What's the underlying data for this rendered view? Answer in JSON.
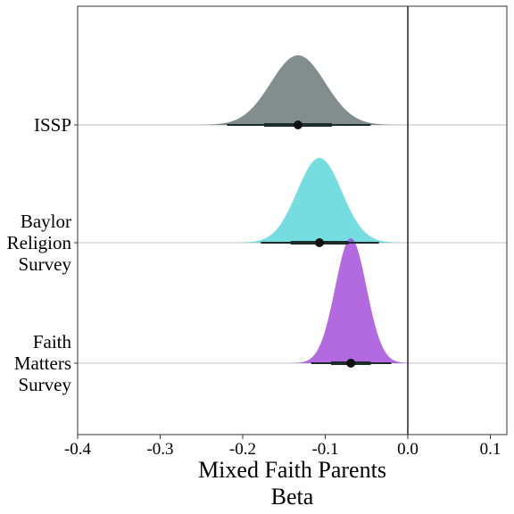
{
  "chart_data": {
    "type": "density",
    "xlabel": [
      "Mixed Faith Parents",
      "Beta"
    ],
    "xlim": [
      -0.4,
      0.12
    ],
    "xticks": [
      -0.4,
      -0.3,
      -0.2,
      -0.1,
      0.0,
      0.1
    ],
    "xtick_labels": [
      "-0.4",
      "-0.3",
      "-0.2",
      "-0.1",
      "0.0",
      "0.1"
    ],
    "reference_line_x": 0,
    "grid": false,
    "series": [
      {
        "name": "ISSP",
        "label_lines": [
          "ISSP"
        ],
        "color": "#586868",
        "opacity": 0.75,
        "point_estimate": -0.133,
        "sd": 0.033,
        "interval_66": [
          -0.174,
          -0.092
        ],
        "interval_95": [
          -0.219,
          -0.045
        ],
        "peak_height": 0.78
      },
      {
        "name": "Baylor Religion Survey",
        "label_lines": [
          "Baylor",
          "Religion",
          "Survey"
        ],
        "color": "#40CFD2",
        "opacity": 0.72,
        "point_estimate": -0.107,
        "sd": 0.027,
        "interval_66": [
          -0.142,
          -0.072
        ],
        "interval_95": [
          -0.178,
          -0.035
        ],
        "peak_height": 0.95
      },
      {
        "name": "Faith Matters Survey",
        "label_lines": [
          "Faith",
          "Matters",
          "Survey"
        ],
        "color": "#A044D8",
        "opacity": 0.8,
        "point_estimate": -0.069,
        "sd": 0.019,
        "interval_66": [
          -0.093,
          -0.045
        ],
        "interval_95": [
          -0.117,
          -0.02
        ],
        "peak_height": 1.4
      }
    ]
  }
}
